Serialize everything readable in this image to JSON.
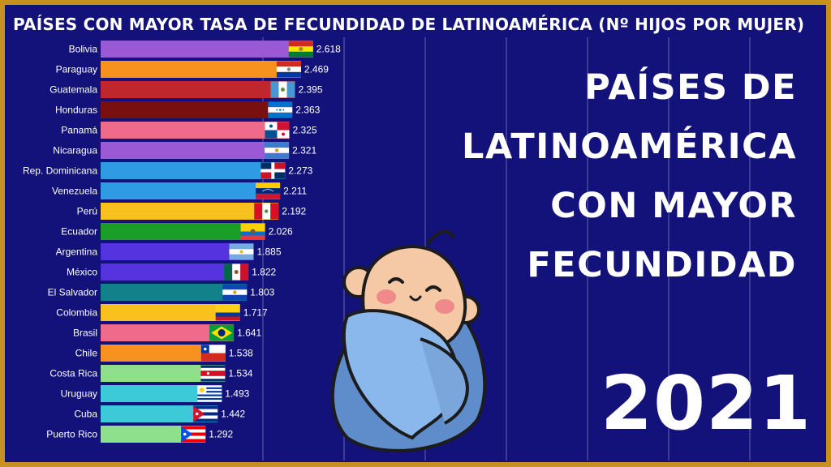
{
  "chart_data": {
    "type": "bar",
    "orientation": "horizontal",
    "title": "PAÍSES CON MAYOR TASA DE FECUNDIDAD DE LATINOAMÉRICA (Nº HIJOS POR MUJER)",
    "categories": [
      "Bolivia",
      "Paraguay",
      "Guatemala",
      "Honduras",
      "Panamá",
      "Nicaragua",
      "Rep. Dominicana",
      "Venezuela",
      "Perú",
      "Ecuador",
      "Argentina",
      "México",
      "El Salvador",
      "Colombia",
      "Brasil",
      "Chile",
      "Costa Rica",
      "Uruguay",
      "Cuba",
      "Puerto Rico"
    ],
    "values": [
      2.618,
      2.469,
      2.395,
      2.363,
      2.325,
      2.321,
      2.273,
      2.211,
      2.192,
      2.026,
      1.885,
      1.822,
      1.803,
      1.717,
      1.641,
      1.538,
      1.534,
      1.493,
      1.442,
      1.292
    ],
    "value_labels": [
      "2.618",
      "2.469",
      "2.395",
      "2.363",
      "2.325",
      "2.321",
      "2.273",
      "2.211",
      "2.192",
      "2.026",
      "1.885",
      "1.822",
      "1.803",
      "1.717",
      "1.641",
      "1.538",
      "1.534",
      "1.493",
      "1.442",
      "1.292"
    ],
    "bar_colors": [
      "#9b59d6",
      "#f7921e",
      "#c0272d",
      "#7a0f0f",
      "#f06a8c",
      "#9b59d6",
      "#2f9be4",
      "#2f9be4",
      "#f9c11d",
      "#1a9e28",
      "#5534e0",
      "#5534e0",
      "#12818a",
      "#f9c11d",
      "#f06a8c",
      "#f7921e",
      "#8fe08c",
      "#3ccad8",
      "#3ccad8",
      "#8fe08c"
    ],
    "flags": [
      "flag-bolivia",
      "flag-paraguay",
      "flag-guatemala",
      "flag-honduras",
      "flag-panama",
      "flag-nicaragua",
      "flag-dominican-republic",
      "flag-venezuela",
      "flag-peru",
      "flag-ecuador",
      "flag-argentina",
      "flag-mexico",
      "flag-el-salvador",
      "flag-colombia",
      "flag-brazil",
      "flag-chile",
      "flag-costa-rica",
      "flag-uruguay",
      "flag-cuba",
      "flag-puerto-rico"
    ],
    "grid": true,
    "xlim": [
      0,
      3.4
    ]
  },
  "headline": {
    "lines": [
      "PAÍSES DE",
      "LATINOAMÉRICA",
      "CON MAYOR",
      "FECUNDIDAD"
    ]
  },
  "year": "2021",
  "illustration": "baby-wrapped-in-blanket",
  "colors": {
    "background": "#12127a",
    "border": "#c8901f",
    "text": "#ffffff"
  }
}
